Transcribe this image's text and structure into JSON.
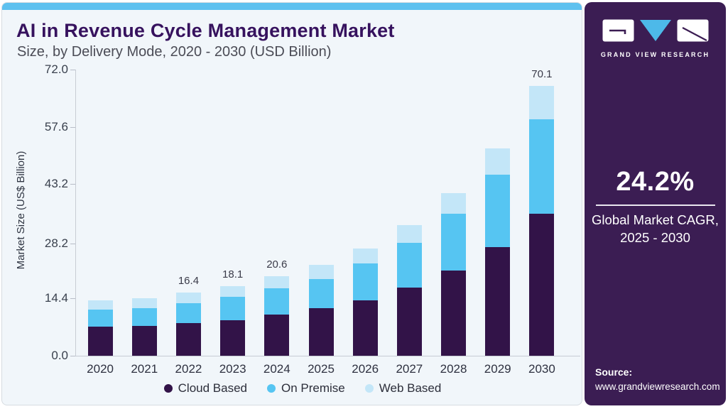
{
  "header": {
    "title": "AI in Revenue Cycle Management Market",
    "subtitle": "Size, by Delivery Mode, 2020 - 2030 (USD Billion)"
  },
  "chart_data": {
    "type": "bar",
    "stacked": true,
    "title": "AI in Revenue Cycle Management Market Size, by Delivery Mode, 2020 - 2030 (USD Billion)",
    "xlabel": "",
    "ylabel": "Market Size (US$ Billion)",
    "ylim": [
      0,
      72
    ],
    "grid": false,
    "legend_position": "bottom",
    "categories": [
      "2020",
      "2021",
      "2022",
      "2023",
      "2024",
      "2025",
      "2026",
      "2027",
      "2028",
      "2029",
      "2030"
    ],
    "series": [
      {
        "name": "Cloud Based",
        "color": "#321348",
        "values": [
          7.5,
          7.7,
          8.4,
          9.3,
          10.7,
          12.3,
          14.4,
          17.8,
          22.1,
          28.3,
          36.9
        ]
      },
      {
        "name": "On Premise",
        "color": "#56c5f2",
        "values": [
          4.5,
          4.7,
          5.3,
          6.0,
          6.8,
          7.7,
          9.5,
          11.5,
          14.8,
          18.8,
          24.6
        ]
      },
      {
        "name": "Web Based",
        "color": "#c3e6f8",
        "values": [
          2.3,
          2.5,
          2.7,
          2.8,
          3.1,
          3.7,
          4.0,
          4.6,
          5.4,
          6.8,
          8.6
        ]
      }
    ],
    "totals": [
      14.3,
      14.9,
      16.4,
      18.1,
      20.6,
      23.7,
      27.9,
      33.9,
      42.3,
      53.9,
      70.1
    ],
    "bar_labels": [
      "",
      "",
      "16.4",
      "18.1",
      "20.6",
      "",
      "",
      "",
      "",
      "",
      "70.1"
    ],
    "yticks": [
      {
        "value": 0,
        "label": "0.0"
      },
      {
        "value": 14.4,
        "label": "14.4"
      },
      {
        "value": 28.2,
        "label": "28.2"
      },
      {
        "value": 43.2,
        "label": "43.2"
      },
      {
        "value": 57.6,
        "label": "57.6"
      },
      {
        "value": 72,
        "label": "72.0"
      }
    ]
  },
  "sidebar": {
    "brand_name": "GRAND VIEW RESEARCH",
    "cagr_value": "24.2%",
    "cagr_caption_line1": "Global Market CAGR,",
    "cagr_caption_line2": "2025 - 2030",
    "source_label": "Source:",
    "source_url": "www.grandviewresearch.com"
  },
  "colors": {
    "accent_bar": "#5ec1ef",
    "panel_purple": "#3b1d53",
    "title_purple": "#36125e",
    "logo_triangle_blue": "#4db9e9",
    "cloud_based": "#321348",
    "on_premise": "#56c5f2",
    "web_based": "#c3e6f8"
  }
}
